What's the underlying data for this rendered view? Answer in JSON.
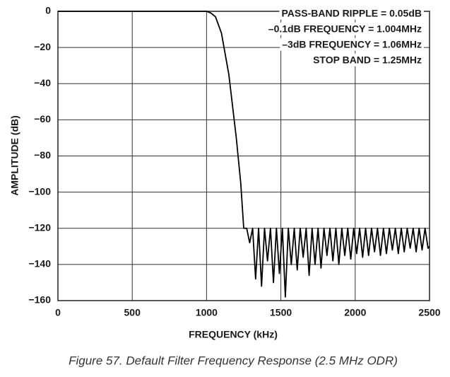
{
  "chart_data": {
    "type": "line",
    "xlabel": "FREQUENCY (kHz)",
    "ylabel": "AMPLITUDE (dB)",
    "caption": "Figure 57. Default Filter Frequency Response (2.5 MHz ODR)",
    "annotations": [
      "PASS-BAND RIPPLE = 0.05dB",
      "–0.1dB FREQUENCY = 1.004MHz",
      "–3dB FREQUENCY = 1.06MHz",
      "STOP BAND = 1.25MHz"
    ],
    "xlim": [
      0,
      2500
    ],
    "xticks": [
      0,
      500,
      1000,
      1500,
      2000,
      2500
    ],
    "ylim": [
      -160,
      0
    ],
    "yticks": [
      0,
      {
        "value": -20,
        "label": "−20"
      },
      {
        "value": -40,
        "label": "−40"
      },
      {
        "value": -60,
        "label": "−60"
      },
      {
        "value": -80,
        "label": "−80"
      },
      {
        "value": -100,
        "label": "−100"
      },
      {
        "value": -120,
        "label": "−120"
      },
      {
        "value": -140,
        "label": "−140"
      },
      {
        "value": -160,
        "label": "−160"
      }
    ],
    "grid": true,
    "x": [
      0,
      500,
      1000,
      1004,
      1030,
      1060,
      1100,
      1150,
      1200,
      1230,
      1250,
      1270,
      1290,
      1310,
      1330,
      1350,
      1370,
      1390,
      1410,
      1430,
      1450,
      1470,
      1490,
      1510,
      1530,
      1550,
      1570,
      1590,
      1610,
      1630,
      1650,
      1670,
      1690,
      1710,
      1730,
      1750,
      1770,
      1790,
      1810,
      1830,
      1850,
      1870,
      1890,
      1910,
      1930,
      1950,
      1970,
      1990,
      2010,
      2030,
      2050,
      2070,
      2090,
      2110,
      2130,
      2150,
      2170,
      2190,
      2210,
      2230,
      2250,
      2270,
      2290,
      2310,
      2330,
      2350,
      2370,
      2390,
      2410,
      2430,
      2450,
      2470,
      2490,
      2500
    ],
    "series": [
      {
        "color": "#000000",
        "values": [
          0,
          0,
          0,
          -0.1,
          -1,
          -3,
          -12,
          -35,
          -70,
          -95,
          -120,
          -120,
          -128,
          -120,
          -148,
          -120,
          -152,
          -120,
          -138,
          -120,
          -150,
          -120,
          -145,
          -120,
          -158,
          -120,
          -140,
          -120,
          -143,
          -120,
          -136,
          -120,
          -146,
          -120,
          -140,
          -120,
          -142,
          -120,
          -135,
          -120,
          -138,
          -120,
          -140,
          -120,
          -135,
          -120,
          -137,
          -120,
          -134,
          -120,
          -136,
          -120,
          -135,
          -120,
          -133,
          -120,
          -135,
          -120,
          -134,
          -120,
          -132,
          -120,
          -134,
          -120,
          -133,
          -120,
          -131,
          -120,
          -133,
          -120,
          -132,
          -120,
          -131,
          -130
        ]
      }
    ]
  }
}
